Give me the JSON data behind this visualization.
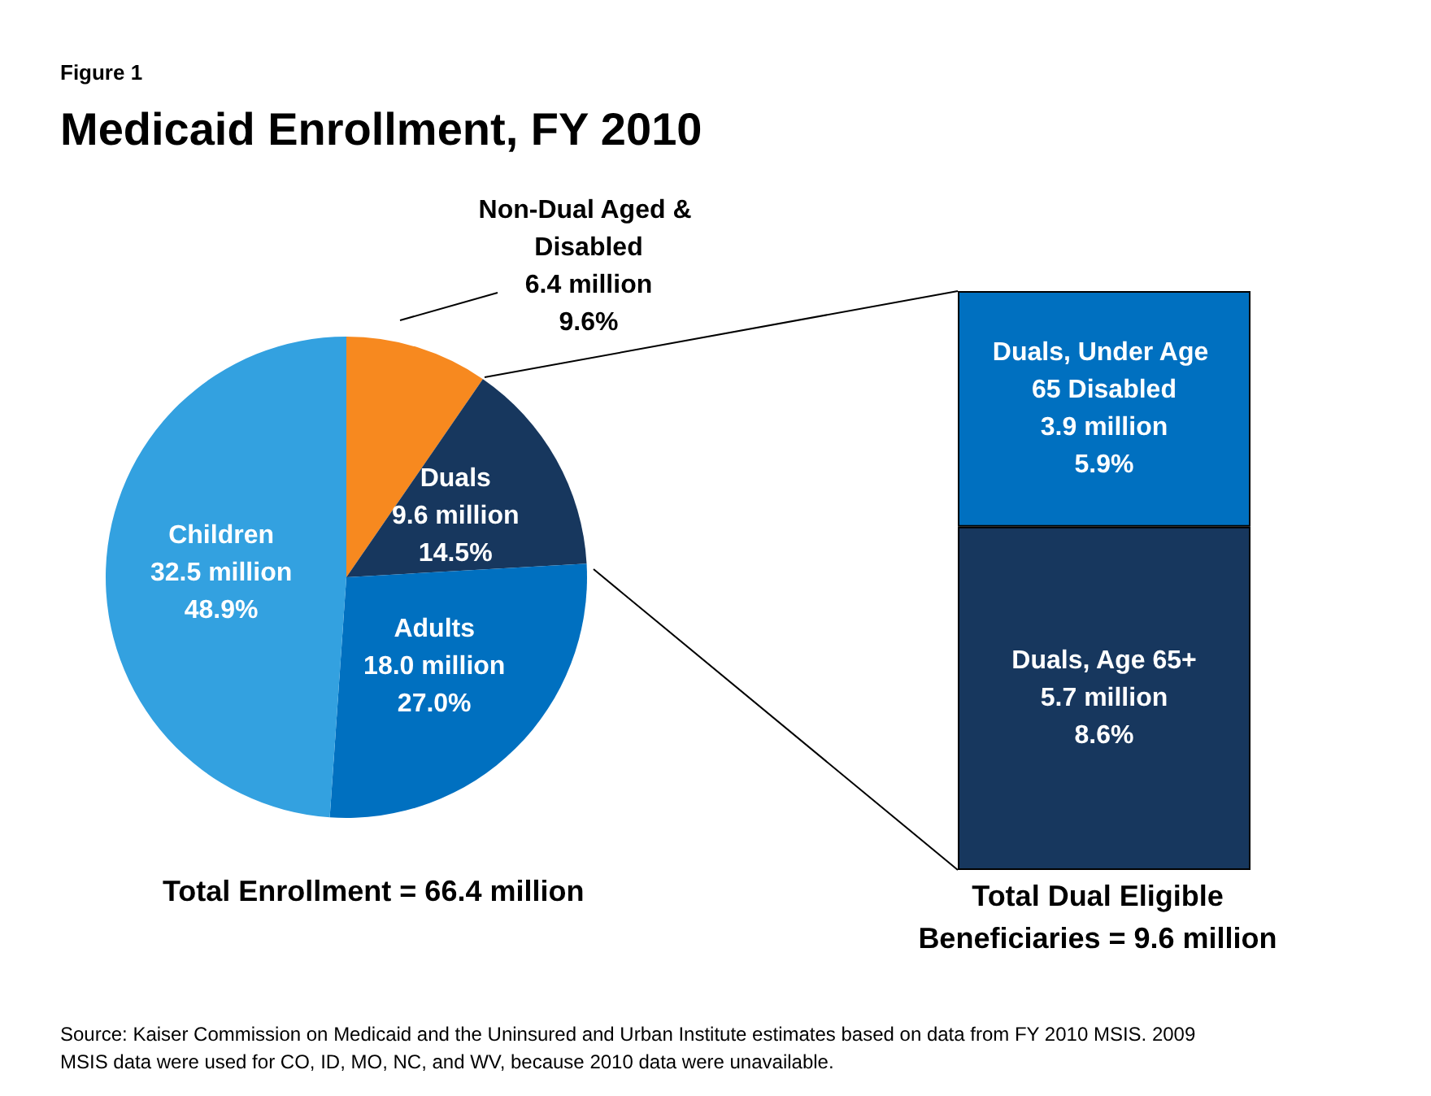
{
  "chart_data": [
    {
      "type": "pie",
      "title": "Medicaid Enrollment, FY 2010",
      "categories": [
        "Non-Dual Aged & Disabled",
        "Duals",
        "Adults",
        "Children"
      ],
      "values": [
        9.6,
        14.5,
        27.0,
        48.9
      ],
      "colors": [
        "#f7891f",
        "#17375e",
        "#0070c0",
        "#33a1e0"
      ],
      "value_labels": [
        "6.4 million\n9.6%",
        "9.6 million\n14.5%",
        "18.0 million\n27.0%",
        "32.5 million\n48.9%"
      ],
      "annotations": [
        "Figure 1",
        "Total Enrollment = 66.4 million",
        "Source: Kaiser Commission on Medicaid and the Uninsured and Urban Institute estimates based on data from FY 2010 MSIS.  2009 MSIS data were used for CO, ID, MO, NC, and WV, because 2010 data were unavailable."
      ]
    },
    {
      "type": "bar",
      "stacked": true,
      "categories": [
        null
      ],
      "series": [
        {
          "name": "Duals, Age 65+",
          "color": "#17375e",
          "values": [
            8.6
          ],
          "value_labels": [
            "5.7 million\n8.6%"
          ]
        },
        {
          "name": "Duals, Under Age 65 Disabled",
          "color": "#0070c0",
          "values": [
            5.9
          ],
          "value_labels": [
            "3.9 million\n5.9%"
          ]
        }
      ],
      "annotations": [
        "Total Dual Eligible Beneficiaries = 9.6 million"
      ]
    }
  ]
}
